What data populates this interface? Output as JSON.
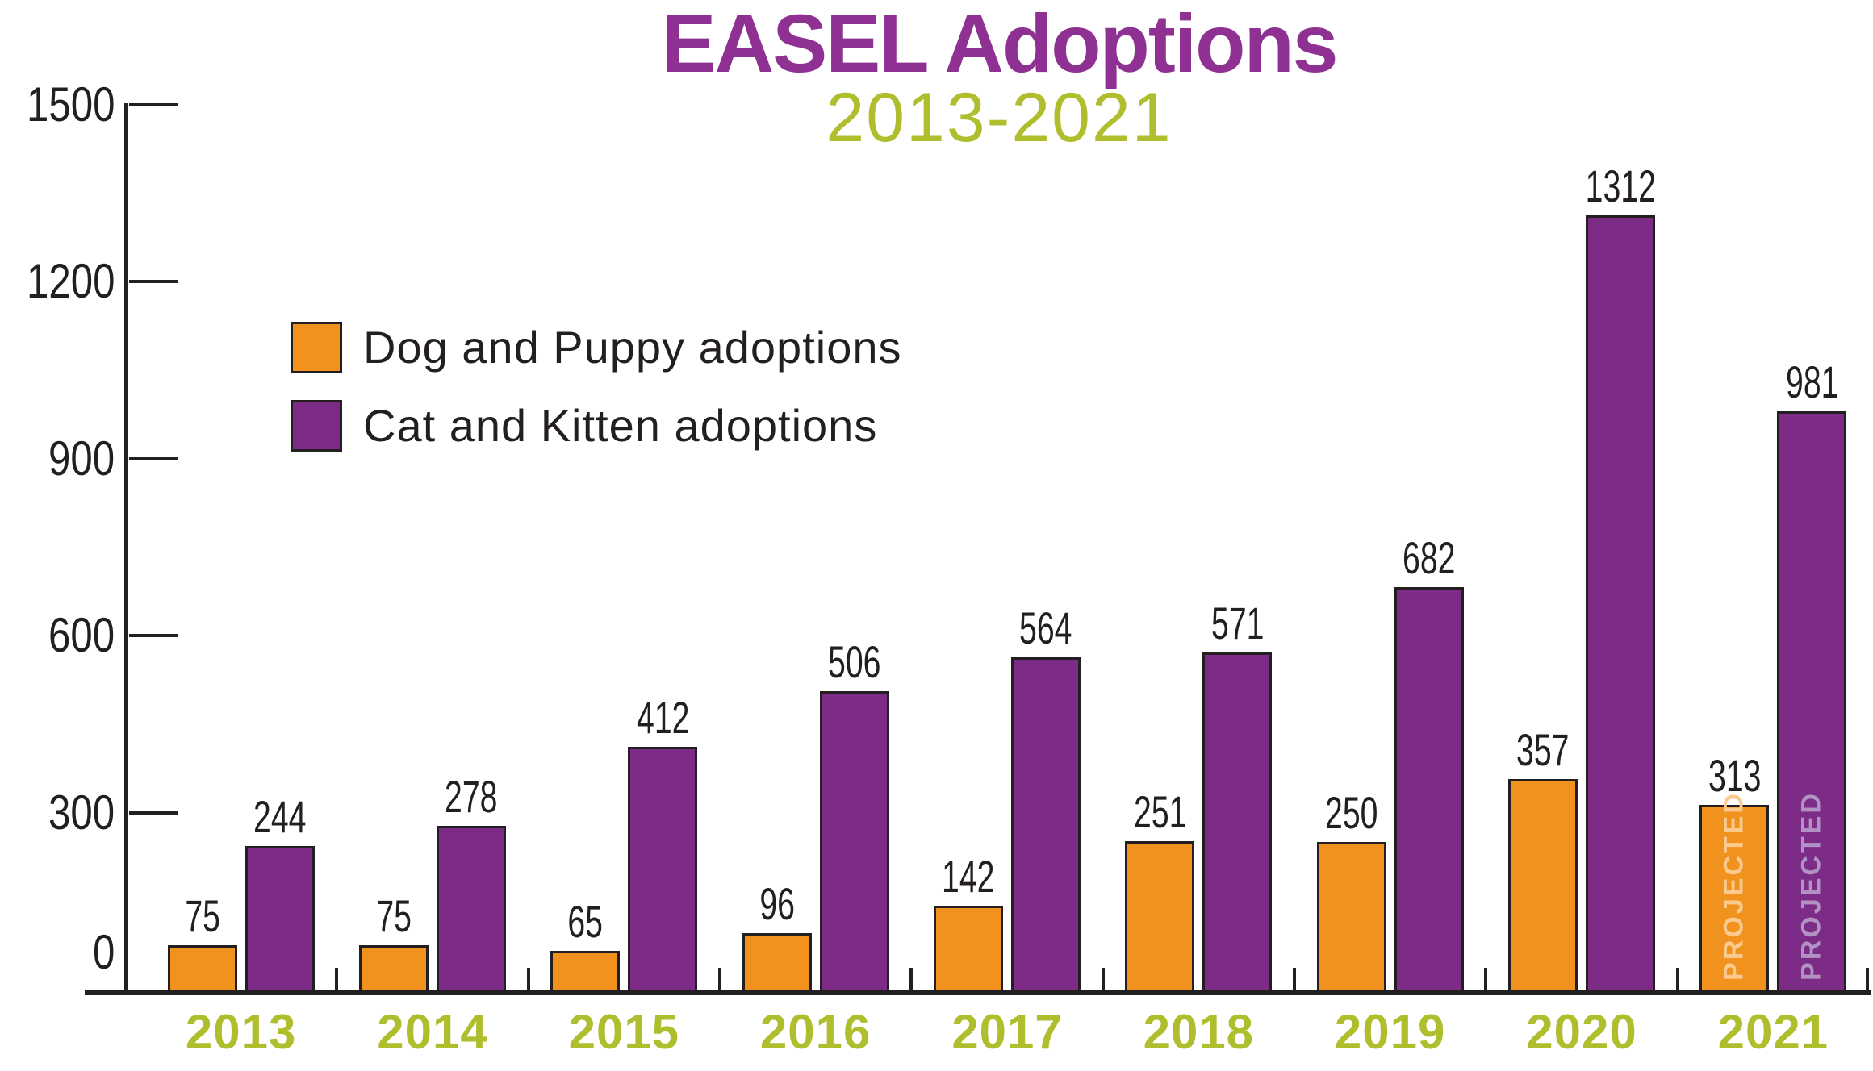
{
  "title": "EASEL Adoptions",
  "subtitle": "2013-2021",
  "colors": {
    "title_purple": "#8E3192",
    "subtitle_green": "#AFBE2D",
    "dog_orange": "#F2921E",
    "cat_purple": "#7C2C87",
    "axis_black": "#231F20",
    "projected_on_orange": "#FBCA8E",
    "projected_on_purple": "#B192C2"
  },
  "legend": {
    "items": [
      {
        "label": "Dog and Puppy adoptions",
        "color": "#F2921E"
      },
      {
        "label": "Cat and Kitten adoptions",
        "color": "#7C2C87"
      }
    ]
  },
  "chart_data": {
    "type": "bar",
    "title": "EASEL Adoptions",
    "subtitle": "2013-2021",
    "categories": [
      "2013",
      "2014",
      "2015",
      "2016",
      "2017",
      "2018",
      "2019",
      "2020",
      "2021"
    ],
    "series": [
      {
        "name": "Dog and Puppy adoptions",
        "color": "#F2921E",
        "values": [
          75,
          75,
          65,
          96,
          142,
          251,
          250,
          357,
          313
        ]
      },
      {
        "name": "Cat and Kitten adoptions",
        "color": "#7C2C87",
        "values": [
          244,
          278,
          412,
          506,
          564,
          571,
          682,
          1312,
          981
        ]
      }
    ],
    "data_labels_shown": true,
    "projected_category": "2021",
    "projected_label": "PROJECTED",
    "y_axis": {
      "min": 0,
      "max": 1500,
      "ticks": [
        1500,
        1200,
        900,
        600,
        300,
        0
      ]
    },
    "grid": false,
    "legend_position": "upper-left-inside"
  }
}
